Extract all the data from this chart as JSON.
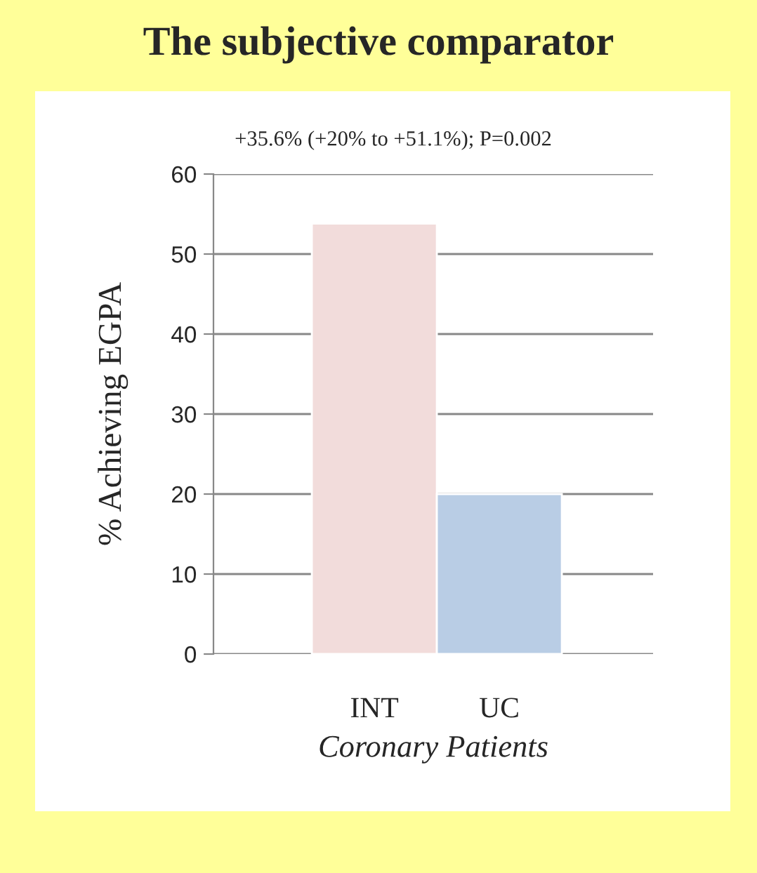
{
  "chart_data": {
    "type": "bar",
    "title": "The subjective comparator",
    "categories": [
      "INT",
      "UC"
    ],
    "series": [
      {
        "values": [
          53.8,
          20
        ]
      }
    ],
    "colors": [
      "#f2dcdb",
      "#b9cde5"
    ],
    "ylabel": "% Achieving EGPA",
    "xlabel": "Coronary Patients",
    "annotations": [
      "+35.6% (+20% to +51.1%); P=0.002"
    ],
    "ylim": [
      0,
      60
    ],
    "yticks": [
      0,
      10,
      20,
      30,
      40,
      50,
      60
    ],
    "grid": "y"
  }
}
